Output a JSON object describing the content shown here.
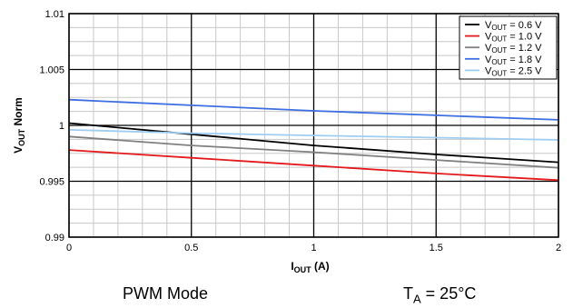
{
  "chart_data": {
    "type": "line",
    "xlabel": {
      "main": "I",
      "sub": "OUT",
      "unit": " (A)"
    },
    "ylabel": {
      "main": "V",
      "sub": "OUT",
      "rest": " Norm"
    },
    "xlim": [
      0,
      2
    ],
    "ylim": [
      0.99,
      1.01
    ],
    "x_ticks": [
      "0",
      "0.5",
      "1",
      "1.5",
      "2"
    ],
    "y_ticks": [
      "0.99",
      "0.995",
      "1",
      "1.005",
      "1.01"
    ],
    "grid": true,
    "legend_position": "top-right",
    "series": [
      {
        "name": "V<sub>OUT</sub> = 0.6 V",
        "label_main": "V",
        "label_sub": "OUT",
        "label_rest": " = 0.6 V",
        "color": "#000000",
        "x": [
          0,
          0.5,
          1,
          1.5,
          2
        ],
        "y": [
          1.0002,
          0.9992,
          0.9982,
          0.9974,
          0.9967
        ]
      },
      {
        "name": "V<sub>OUT</sub> = 1.0 V",
        "label_main": "V",
        "label_sub": "OUT",
        "label_rest": " = 1.0 V",
        "color": "#e41a1c",
        "x": [
          0,
          0.5,
          1,
          1.5,
          2
        ],
        "y": [
          0.9978,
          0.9971,
          0.9964,
          0.9957,
          0.9951
        ]
      },
      {
        "name": "V<sub>OUT</sub> = 1.2 V",
        "label_main": "V",
        "label_sub": "OUT",
        "label_rest": " = 1.2 V",
        "color": "#808080",
        "x": [
          0,
          0.5,
          1,
          1.5,
          2
        ],
        "y": [
          0.999,
          0.9982,
          0.9976,
          0.9969,
          0.9962
        ]
      },
      {
        "name": "V<sub>OUT</sub> = 1.8 V",
        "label_main": "V",
        "label_sub": "OUT",
        "label_rest": " = 1.8 V",
        "color": "#3d6fe0",
        "x": [
          0,
          0.5,
          1,
          1.5,
          2
        ],
        "y": [
          1.0023,
          1.0018,
          1.0013,
          1.0009,
          1.0005
        ]
      },
      {
        "name": "V<sub>OUT</sub> = 2.5 V",
        "label_main": "V",
        "label_sub": "OUT",
        "label_rest": " = 2.5 V",
        "color": "#9fcdf2",
        "x": [
          0,
          0.5,
          1,
          1.5,
          2
        ],
        "y": [
          0.9996,
          0.9993,
          0.9991,
          0.9989,
          0.9987
        ]
      }
    ]
  },
  "notes": {
    "mode": "PWM Mode",
    "temp_main": "T",
    "temp_sub": "A",
    "temp_rest": " = 25°C"
  }
}
